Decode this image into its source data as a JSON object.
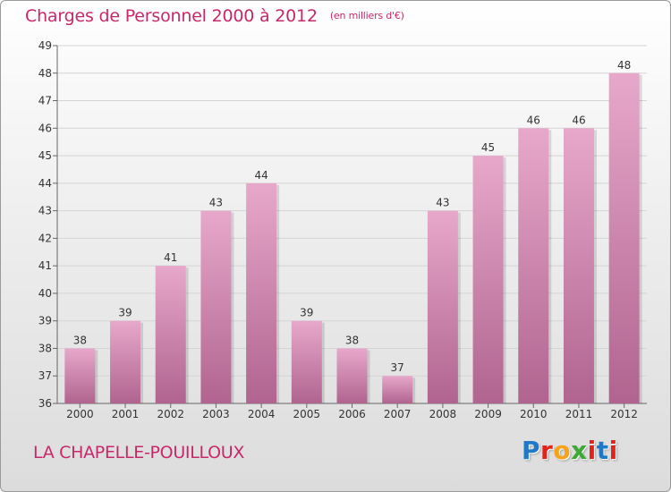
{
  "header": {
    "title": "Charges de Personnel 2000 à 2012",
    "subtitle": "(en milliers d'€)"
  },
  "footer": {
    "location": "LA CHAPELLE-POUILLOUX",
    "logo_letters": [
      "P",
      "r",
      "o",
      "x",
      "i",
      "t",
      "i"
    ],
    "logo_colors": [
      "#1f78c8",
      "#e2231a",
      "#f7a21b",
      "#3aa935",
      "#e2231a",
      "#1f78c8",
      "#e2231a"
    ]
  },
  "colors": {
    "bar_light": "#e7a8cb",
    "bar_dark": "#b0648f",
    "title": "#c8286a",
    "grid": "#d4d4d4"
  },
  "chart_data": {
    "type": "bar",
    "categories": [
      "2000",
      "2001",
      "2002",
      "2003",
      "2004",
      "2005",
      "2006",
      "2007",
      "2008",
      "2009",
      "2010",
      "2011",
      "2012"
    ],
    "values": [
      38,
      39,
      41,
      43,
      44,
      39,
      38,
      37,
      43,
      45,
      46,
      46,
      48
    ],
    "ylim": [
      36,
      49
    ],
    "yticks": [
      36,
      37,
      38,
      39,
      40,
      41,
      42,
      43,
      44,
      45,
      46,
      47,
      48,
      49
    ],
    "grid": true,
    "data_labels": true
  }
}
